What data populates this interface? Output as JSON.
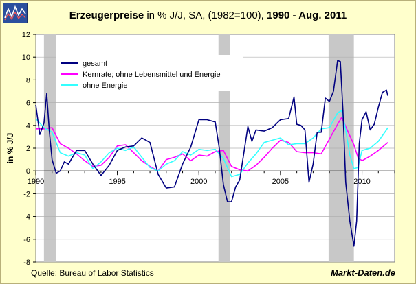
{
  "header": {
    "title_bold": "Erzeugerpreise",
    "title_normal": " in % J/J, SA, (1982=100), ",
    "title_range": "1990 - Aug. 2011"
  },
  "footer": {
    "source": "Quelle: Bureau of Labor Statistics",
    "brand": "Markt-Daten.de"
  },
  "colors": {
    "background": "#ffffcc",
    "plot": "#ffffff",
    "recession": "#c8c8c8",
    "gesamt": "#000080",
    "kernrate": "#ff00ff",
    "ohne_energie": "#33ffff"
  },
  "chart_data": {
    "type": "line",
    "title": "Erzeugerpreise in % J/J, SA, (1982=100), 1990 - Aug. 2011",
    "xlabel": "",
    "ylabel": "in % J/J",
    "xlim": [
      1990,
      2012
    ],
    "ylim": [
      -8,
      12
    ],
    "x_ticks": [
      1990,
      1995,
      2000,
      2005,
      2010
    ],
    "y_ticks": [
      -8,
      -6,
      -4,
      -2,
      0,
      2,
      4,
      6,
      8,
      10,
      12
    ],
    "grid": true,
    "legend_position": "top-left",
    "recessions": [
      [
        1990.5,
        1991.25
      ],
      [
        2001.2,
        2001.9
      ],
      [
        2007.95,
        2009.5
      ]
    ],
    "series": [
      {
        "name": "gesamt",
        "color": "#000080",
        "x": [
          1990.0,
          1990.25,
          1990.5,
          1990.67,
          1990.83,
          1991.0,
          1991.25,
          1991.5,
          1991.75,
          1992.0,
          1992.5,
          1993.0,
          1993.5,
          1994.0,
          1994.5,
          1995.0,
          1995.5,
          1996.0,
          1996.5,
          1997.0,
          1997.5,
          1998.0,
          1998.5,
          1999.0,
          1999.5,
          2000.0,
          2000.5,
          2001.0,
          2001.25,
          2001.5,
          2001.75,
          2002.0,
          2002.25,
          2002.5,
          2003.0,
          2003.25,
          2003.5,
          2004.0,
          2004.5,
          2005.0,
          2005.5,
          2005.83,
          2006.0,
          2006.25,
          2006.5,
          2006.75,
          2007.0,
          2007.25,
          2007.5,
          2007.75,
          2008.0,
          2008.25,
          2008.5,
          2008.67,
          2008.83,
          2009.0,
          2009.25,
          2009.5,
          2009.67,
          2009.83,
          2010.0,
          2010.25,
          2010.5,
          2010.75,
          2011.0,
          2011.25,
          2011.5,
          2011.58
        ],
        "values": [
          5.8,
          3.2,
          4.2,
          6.8,
          3.5,
          1.0,
          -0.2,
          0.0,
          0.8,
          0.6,
          1.8,
          1.8,
          0.6,
          -0.4,
          0.5,
          1.8,
          2.1,
          2.2,
          2.9,
          2.5,
          -0.3,
          -1.5,
          -1.4,
          0.6,
          2.1,
          4.5,
          4.5,
          4.3,
          2.0,
          -1.2,
          -2.7,
          -2.7,
          -1.4,
          -0.8,
          3.9,
          2.6,
          3.6,
          3.5,
          3.8,
          4.5,
          4.6,
          6.5,
          4.1,
          4.0,
          3.6,
          -1.0,
          0.6,
          3.4,
          3.4,
          6.4,
          6.1,
          7.0,
          9.7,
          9.6,
          5.3,
          -1.0,
          -4.4,
          -6.6,
          -4.4,
          2.4,
          4.5,
          5.2,
          3.6,
          4.1,
          5.6,
          6.9,
          7.1,
          6.6
        ]
      },
      {
        "name": "Kernrate; ohne Lebensmittel und Energie",
        "color": "#ff00ff",
        "x": [
          1990.0,
          1990.5,
          1991.0,
          1991.5,
          1992.0,
          1992.5,
          1993.0,
          1993.5,
          1994.0,
          1994.5,
          1995.0,
          1995.5,
          1996.0,
          1996.5,
          1997.0,
          1997.5,
          1998.0,
          1998.5,
          1999.0,
          1999.5,
          2000.0,
          2000.5,
          2001.0,
          2001.5,
          2002.0,
          2002.5,
          2003.0,
          2003.5,
          2004.0,
          2004.5,
          2005.0,
          2005.5,
          2006.0,
          2006.5,
          2007.0,
          2007.5,
          2008.0,
          2008.5,
          2008.75,
          2009.0,
          2009.5,
          2009.75,
          2010.0,
          2010.5,
          2011.0,
          2011.5,
          2011.58
        ],
        "values": [
          3.7,
          3.7,
          3.8,
          2.4,
          2.0,
          1.5,
          0.9,
          0.4,
          0.5,
          1.2,
          2.2,
          2.3,
          1.6,
          0.9,
          0.4,
          0.0,
          1.0,
          1.2,
          1.5,
          0.9,
          1.4,
          1.3,
          1.7,
          1.8,
          0.4,
          0.1,
          0.0,
          0.5,
          1.2,
          2.0,
          2.7,
          2.5,
          1.7,
          1.6,
          1.6,
          1.5,
          2.8,
          4.1,
          4.7,
          3.9,
          2.3,
          1.2,
          0.9,
          1.3,
          1.8,
          2.4,
          2.5
        ]
      },
      {
        "name": "ohne Energie",
        "color": "#33ffff",
        "x": [
          1990.0,
          1990.5,
          1991.0,
          1991.5,
          1992.0,
          1992.5,
          1993.0,
          1993.5,
          1994.0,
          1994.5,
          1995.0,
          1995.5,
          1996.0,
          1996.5,
          1997.0,
          1997.5,
          1998.0,
          1998.5,
          1999.0,
          1999.5,
          2000.0,
          2000.5,
          2001.0,
          2001.5,
          2002.0,
          2002.5,
          2003.0,
          2003.5,
          2004.0,
          2004.5,
          2005.0,
          2005.5,
          2006.0,
          2006.5,
          2007.0,
          2007.5,
          2008.0,
          2008.5,
          2008.75,
          2009.0,
          2009.25,
          2009.5,
          2009.75,
          2010.0,
          2010.5,
          2011.0,
          2011.5,
          2011.58
        ],
        "values": [
          4.6,
          3.8,
          3.4,
          1.6,
          1.3,
          1.6,
          1.4,
          0.2,
          0.8,
          1.6,
          2.0,
          1.8,
          2.1,
          1.2,
          0.3,
          0.0,
          0.6,
          0.9,
          1.7,
          1.4,
          1.9,
          1.8,
          1.9,
          1.1,
          -0.5,
          -0.3,
          0.7,
          1.5,
          2.5,
          2.7,
          2.9,
          2.3,
          2.4,
          2.4,
          2.9,
          3.7,
          3.8,
          5.1,
          5.3,
          3.6,
          1.4,
          0.2,
          0.3,
          1.8,
          2.0,
          2.6,
          3.6,
          3.8
        ]
      }
    ]
  }
}
